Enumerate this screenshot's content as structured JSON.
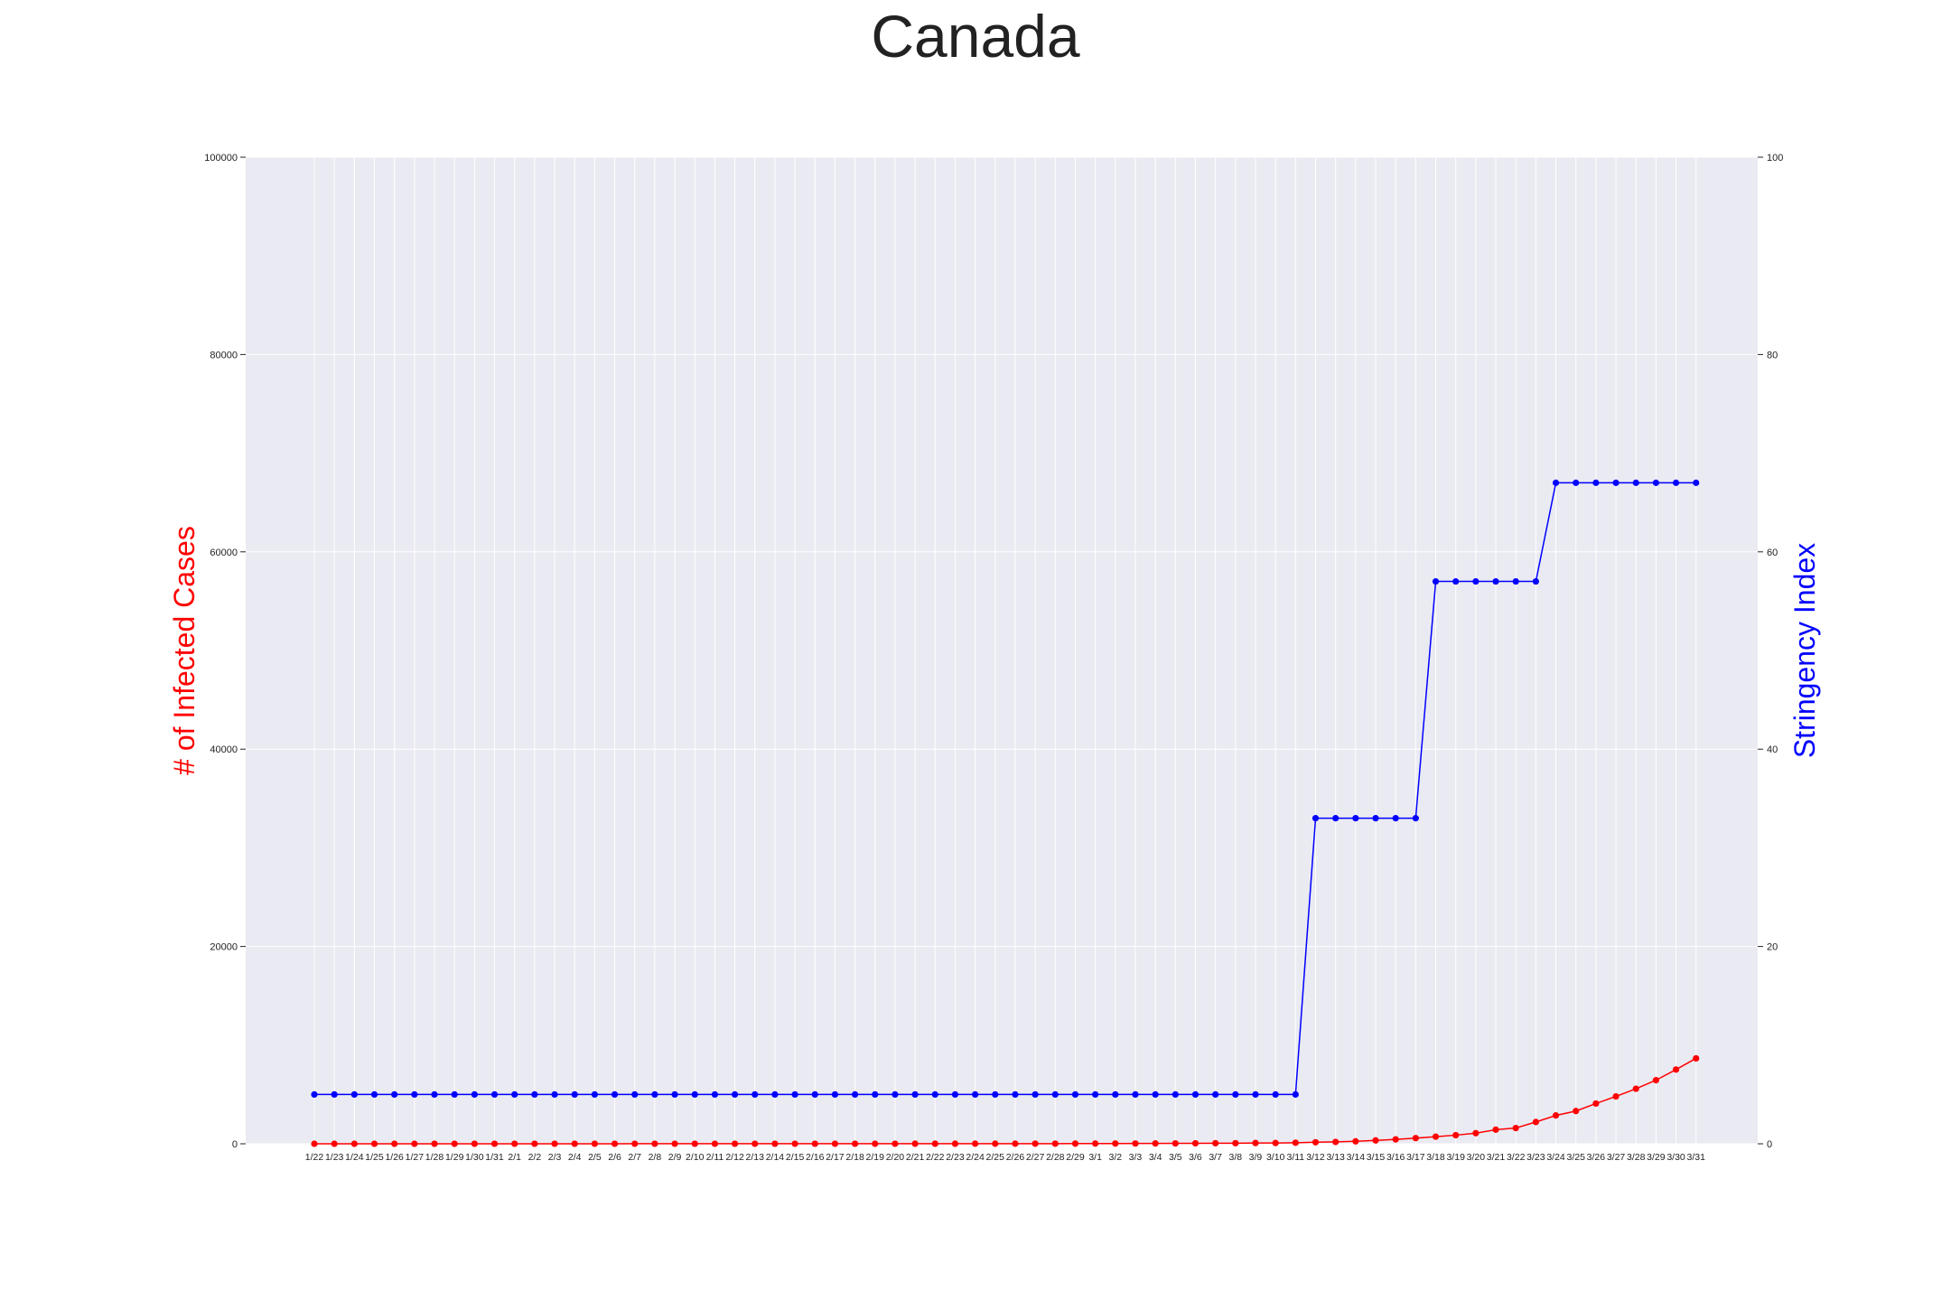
{
  "chart_data": {
    "type": "line",
    "title": "Canada",
    "y_left_label": "# of Infected Cases",
    "y_right_label": "Stringency Index",
    "y_left_ticks": [
      "0",
      "20000",
      "40000",
      "60000",
      "80000",
      "100000"
    ],
    "y_right_ticks": [
      "0",
      "20",
      "40",
      "60",
      "80",
      "100"
    ],
    "y_left_lim": [
      0,
      100000
    ],
    "y_right_lim": [
      0,
      100
    ],
    "grid": true,
    "colors": {
      "cases": "#ff0000",
      "stringency": "#0000ff",
      "plot_bg": "#eaeaf2",
      "grid": "#ffffff"
    },
    "categories": [
      "1/22",
      "1/23",
      "1/24",
      "1/25",
      "1/26",
      "1/27",
      "1/28",
      "1/29",
      "1/30",
      "1/31",
      "2/1",
      "2/2",
      "2/3",
      "2/4",
      "2/5",
      "2/6",
      "2/7",
      "2/8",
      "2/9",
      "2/10",
      "2/11",
      "2/12",
      "2/13",
      "2/14",
      "2/15",
      "2/16",
      "2/17",
      "2/18",
      "2/19",
      "2/20",
      "2/21",
      "2/22",
      "2/23",
      "2/24",
      "2/25",
      "2/26",
      "2/27",
      "2/28",
      "2/29",
      "3/1",
      "3/2",
      "3/3",
      "3/4",
      "3/5",
      "3/6",
      "3/7",
      "3/8",
      "3/9",
      "3/10",
      "3/11",
      "3/12",
      "3/13",
      "3/14",
      "3/15",
      "3/16",
      "3/17",
      "3/18",
      "3/19",
      "3/20",
      "3/21",
      "3/22",
      "3/23",
      "3/24",
      "3/25",
      "3/26",
      "3/27",
      "3/28",
      "3/29",
      "3/30",
      "3/31"
    ],
    "series": [
      {
        "axis": "left",
        "color": "#ff0000",
        "values": [
          0,
          0,
          0,
          0,
          1,
          1,
          2,
          2,
          2,
          4,
          4,
          4,
          4,
          4,
          5,
          5,
          7,
          7,
          7,
          7,
          7,
          7,
          7,
          7,
          7,
          7,
          8,
          8,
          8,
          8,
          9,
          9,
          9,
          10,
          11,
          11,
          13,
          14,
          20,
          24,
          27,
          30,
          33,
          40,
          51,
          57,
          62,
          77,
          79,
          108,
          156,
          190,
          250,
          344,
          449,
          578,
          722,
          875,
          1075,
          1430,
          1598,
          2208,
          2872,
          3321,
          4081,
          4803,
          5582,
          6446,
          7525,
          8659
        ]
      },
      {
        "axis": "right",
        "color": "#0000ff",
        "values": [
          5,
          5,
          5,
          5,
          5,
          5,
          5,
          5,
          5,
          5,
          5,
          5,
          5,
          5,
          5,
          5,
          5,
          5,
          5,
          5,
          5,
          5,
          5,
          5,
          5,
          5,
          5,
          5,
          5,
          5,
          5,
          5,
          5,
          5,
          5,
          5,
          5,
          5,
          5,
          5,
          5,
          5,
          5,
          5,
          5,
          5,
          5,
          5,
          5,
          5,
          33,
          33,
          33,
          33,
          33,
          33,
          57,
          57,
          57,
          57,
          57,
          57,
          67,
          67,
          67,
          67,
          67,
          67,
          67,
          67
        ]
      }
    ]
  }
}
